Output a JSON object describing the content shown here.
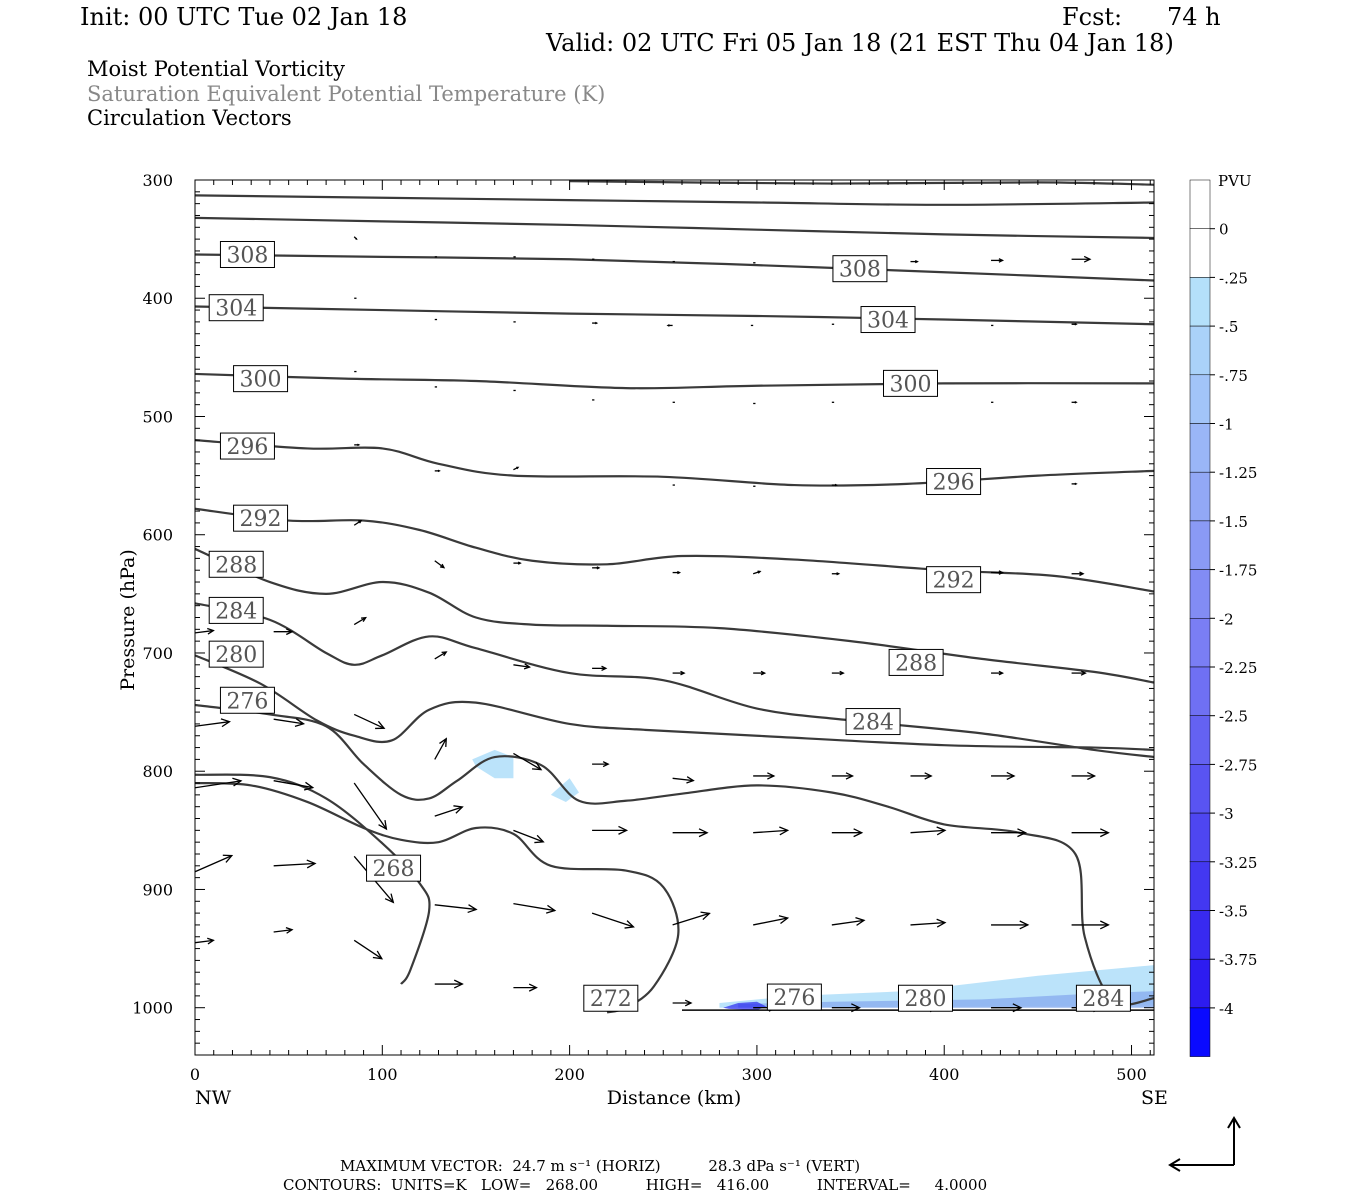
{
  "header": {
    "init": "Init: 00 UTC Tue 02 Jan 18",
    "fcst_label": "Fcst:",
    "fcst_value": "74 h",
    "valid": "Valid: 02 UTC Fri 05 Jan 18 (21 EST Thu 04 Jan 18)",
    "field1": "Moist Potential Vorticity",
    "field2": "Saturation Equivalent Potential Temperature (K)",
    "field3": "Circulation Vectors"
  },
  "footer": {
    "line1": "MAXIMUM VECTOR:  24.7 m s⁻¹ (HORIZ)          28.3 dPa s⁻¹ (VERT)",
    "line2": "CONTOURS:  UNITS=K   LOW=   268.00          HIGH=   416.00          INTERVAL=     4.0000"
  },
  "colors": {
    "contour": "#3a3a3a",
    "vector": "#000000",
    "pv_light": "#b4e0fa",
    "pv_mid": "#8fb2f0",
    "pv_dark": "#2a2af0"
  },
  "chart_data": {
    "type": "cross-section",
    "ylabel": "Pressure (hPa)",
    "xlabel": "Distance (km)",
    "x_left_label": "NW",
    "x_right_label": "SE",
    "xlim": [
      0,
      512
    ],
    "ylim": [
      1040,
      300
    ],
    "x_ticks": [
      0,
      100,
      200,
      300,
      400,
      500
    ],
    "y_ticks": [
      300,
      400,
      500,
      600,
      700,
      800,
      900,
      1000
    ],
    "colorbar": {
      "unit": "PVU",
      "labels": [
        "0",
        "-.25",
        "-.5",
        "-.75",
        "-1",
        "-1.25",
        "-1.5",
        "-1.75",
        "-2",
        "-2.25",
        "-2.5",
        "-2.75",
        "-3",
        "-3.25",
        "-3.5",
        "-3.75",
        "-4"
      ]
    },
    "contour_labels": [
      {
        "value": "308",
        "x": 28,
        "p": 363
      },
      {
        "value": "308",
        "x": 355,
        "p": 375
      },
      {
        "value": "304",
        "x": 22,
        "p": 408
      },
      {
        "value": "304",
        "x": 370,
        "p": 418
      },
      {
        "value": "300",
        "x": 35,
        "p": 468
      },
      {
        "value": "300",
        "x": 382,
        "p": 472
      },
      {
        "value": "296",
        "x": 28,
        "p": 525
      },
      {
        "value": "296",
        "x": 405,
        "p": 555
      },
      {
        "value": "292",
        "x": 35,
        "p": 586
      },
      {
        "value": "292",
        "x": 405,
        "p": 638
      },
      {
        "value": "288",
        "x": 22,
        "p": 625
      },
      {
        "value": "288",
        "x": 385,
        "p": 708
      },
      {
        "value": "284",
        "x": 22,
        "p": 664
      },
      {
        "value": "284",
        "x": 362,
        "p": 758
      },
      {
        "value": "280",
        "x": 22,
        "p": 701
      },
      {
        "value": "276",
        "x": 28,
        "p": 740
      },
      {
        "value": "268",
        "x": 106,
        "p": 882
      },
      {
        "value": "272",
        "x": 222,
        "p": 992
      },
      {
        "value": "276",
        "x": 320,
        "p": 991
      },
      {
        "value": "280",
        "x": 390,
        "p": 992
      },
      {
        "value": "284",
        "x": 485,
        "p": 992
      }
    ],
    "isentropes": [
      {
        "theta": 316,
        "x": [
          200,
          340,
          450,
          512
        ],
        "p": [
          301,
          303,
          302,
          304
        ]
      },
      {
        "theta": 312,
        "x": [
          0,
          100,
          200,
          300,
          400,
          512
        ],
        "p": [
          313,
          315,
          317,
          319,
          321,
          319
        ]
      },
      {
        "theta": 312,
        "x": [
          0,
          100,
          200,
          300,
          400,
          512
        ],
        "p": [
          332,
          335,
          338,
          342,
          346,
          349
        ]
      },
      {
        "theta": 308,
        "x": [
          0,
          100,
          200,
          300,
          400,
          512
        ],
        "p": [
          363,
          365,
          367,
          372,
          378,
          385
        ]
      },
      {
        "theta": 304,
        "x": [
          0,
          100,
          200,
          300,
          400,
          512
        ],
        "p": [
          407,
          410,
          413,
          415,
          418,
          422
        ]
      },
      {
        "theta": 300,
        "x": [
          0,
          80,
          150,
          230,
          300,
          400,
          512
        ],
        "p": [
          464,
          468,
          470,
          476,
          474,
          472,
          472
        ]
      },
      {
        "theta": 296,
        "x": [
          0,
          60,
          100,
          130,
          170,
          250,
          320,
          380,
          450,
          512
        ],
        "p": [
          520,
          527,
          527,
          540,
          550,
          551,
          558,
          557,
          550,
          546
        ]
      },
      {
        "theta": 292,
        "x": [
          0,
          50,
          90,
          120,
          150,
          180,
          220,
          260,
          320,
          400,
          460,
          512
        ],
        "p": [
          578,
          588,
          588,
          596,
          611,
          622,
          625,
          618,
          621,
          630,
          635,
          648
        ]
      },
      {
        "theta": 288,
        "x": [
          0,
          40,
          70,
          100,
          125,
          150,
          180,
          220,
          280,
          350,
          420,
          480,
          512
        ],
        "p": [
          612,
          640,
          650,
          640,
          649,
          670,
          676,
          677,
          679,
          690,
          705,
          716,
          725
        ]
      },
      {
        "theta": 284,
        "x": [
          0,
          40,
          70,
          85,
          100,
          125,
          150,
          200,
          250,
          300,
          350,
          420,
          480,
          512
        ],
        "p": [
          658,
          672,
          700,
          710,
          702,
          686,
          696,
          717,
          723,
          747,
          757,
          768,
          782,
          788
        ]
      },
      {
        "theta": 280,
        "x": [
          0,
          35,
          65,
          85,
          105,
          125,
          150,
          200,
          240,
          300,
          400,
          480,
          512
        ],
        "p": [
          702,
          726,
          757,
          770,
          774,
          748,
          742,
          760,
          765,
          770,
          778,
          780,
          782
        ]
      },
      {
        "theta": 276,
        "x": [
          0,
          40,
          70,
          90,
          110,
          125,
          140,
          160,
          185,
          205,
          230,
          260,
          300,
          340,
          370,
          400,
          440,
          470,
          475,
          490,
          512
        ],
        "p": [
          744,
          752,
          762,
          794,
          820,
          823,
          808,
          788,
          795,
          825,
          825,
          819,
          812,
          818,
          830,
          845,
          852,
          870,
          940,
          994,
          992
        ]
      },
      {
        "theta": 272,
        "x": [
          0,
          30,
          60,
          90,
          110,
          130,
          150,
          170,
          190,
          230,
          250,
          258,
          245,
          230,
          220
        ],
        "p": [
          810,
          812,
          826,
          848,
          858,
          860,
          848,
          853,
          880,
          884,
          898,
          938,
          982,
          1000,
          1004
        ]
      },
      {
        "theta": 268,
        "x": [
          0,
          40,
          70,
          100,
          120,
          125,
          115,
          110
        ],
        "p": [
          803,
          805,
          823,
          861,
          895,
          918,
          968,
          980
        ]
      }
    ],
    "vectors": [
      {
        "x": 85,
        "p": 348,
        "u": 1,
        "w": -1
      },
      {
        "x": 128,
        "p": 365,
        "u": 1,
        "w": 0
      },
      {
        "x": 170,
        "p": 365,
        "u": 1,
        "w": 0
      },
      {
        "x": 212,
        "p": 367,
        "u": 1,
        "w": 0
      },
      {
        "x": 255,
        "p": 369,
        "u": 1,
        "w": 0
      },
      {
        "x": 298,
        "p": 370,
        "u": 1,
        "w": 0
      },
      {
        "x": 382,
        "p": 369,
        "u": 3,
        "w": 0
      },
      {
        "x": 425,
        "p": 368,
        "u": 5,
        "w": 0
      },
      {
        "x": 468,
        "p": 367,
        "u": 8,
        "w": 0
      },
      {
        "x": 85,
        "p": 400,
        "u": 1,
        "w": 0
      },
      {
        "x": 128,
        "p": 418,
        "u": 1,
        "w": 0
      },
      {
        "x": 170,
        "p": 420,
        "u": 1,
        "w": 0
      },
      {
        "x": 212,
        "p": 421,
        "u": 2,
        "w": 0
      },
      {
        "x": 255,
        "p": 423,
        "u": -2,
        "w": 0
      },
      {
        "x": 298,
        "p": 423,
        "u": -1,
        "w": 0
      },
      {
        "x": 340,
        "p": 422,
        "u": 1,
        "w": 0
      },
      {
        "x": 425,
        "p": 423,
        "u": 1,
        "w": 0
      },
      {
        "x": 468,
        "p": 422,
        "u": 2,
        "w": 0
      },
      {
        "x": 85,
        "p": 462,
        "u": 1,
        "w": 0
      },
      {
        "x": 128,
        "p": 475,
        "u": 1,
        "w": 0
      },
      {
        "x": 170,
        "p": 478,
        "u": 1,
        "w": 0
      },
      {
        "x": 212,
        "p": 486,
        "u": 1,
        "w": 0
      },
      {
        "x": 255,
        "p": 488,
        "u": 1,
        "w": 0
      },
      {
        "x": 298,
        "p": 489,
        "u": 1,
        "w": 0
      },
      {
        "x": 340,
        "p": 488,
        "u": 1,
        "w": 0
      },
      {
        "x": 425,
        "p": 488,
        "u": 1,
        "w": 0
      },
      {
        "x": 468,
        "p": 488,
        "u": 2,
        "w": 0
      },
      {
        "x": 85,
        "p": 524,
        "u": 2,
        "w": 0
      },
      {
        "x": 128,
        "p": 546,
        "u": 2,
        "w": 0
      },
      {
        "x": 170,
        "p": 545,
        "u": 2,
        "w": 1
      },
      {
        "x": 255,
        "p": 558,
        "u": 1,
        "w": 0
      },
      {
        "x": 298,
        "p": 559,
        "u": 1,
        "w": 0
      },
      {
        "x": 340,
        "p": 558,
        "u": 2,
        "w": 0
      },
      {
        "x": 468,
        "p": 557,
        "u": 2,
        "w": 0
      },
      {
        "x": 85,
        "p": 592,
        "u": 3,
        "w": 2
      },
      {
        "x": 128,
        "p": 622,
        "u": 4,
        "w": -3
      },
      {
        "x": 170,
        "p": 624,
        "u": 3,
        "w": 0
      },
      {
        "x": 212,
        "p": 628,
        "u": 3,
        "w": 0
      },
      {
        "x": 255,
        "p": 632,
        "u": 3,
        "w": 0
      },
      {
        "x": 298,
        "p": 633,
        "u": 3,
        "w": 1
      },
      {
        "x": 340,
        "p": 633,
        "u": 3,
        "w": 0
      },
      {
        "x": 425,
        "p": 632,
        "u": 5,
        "w": 0
      },
      {
        "x": 468,
        "p": 633,
        "u": 5,
        "w": 0
      },
      {
        "x": 0,
        "p": 683,
        "u": 8,
        "w": 1
      },
      {
        "x": 42,
        "p": 682,
        "u": 8,
        "w": 0
      },
      {
        "x": 85,
        "p": 676,
        "u": 5,
        "w": 3
      },
      {
        "x": 128,
        "p": 705,
        "u": 5,
        "w": 3
      },
      {
        "x": 170,
        "p": 710,
        "u": 7,
        "w": -1
      },
      {
        "x": 212,
        "p": 713,
        "u": 6,
        "w": 0
      },
      {
        "x": 255,
        "p": 717,
        "u": 5,
        "w": 0
      },
      {
        "x": 298,
        "p": 717,
        "u": 5,
        "w": 0
      },
      {
        "x": 340,
        "p": 717,
        "u": 5,
        "w": 0
      },
      {
        "x": 382,
        "p": 717,
        "u": 5,
        "w": 0
      },
      {
        "x": 425,
        "p": 717,
        "u": 5,
        "w": 0
      },
      {
        "x": 468,
        "p": 717,
        "u": 6,
        "w": 0
      },
      {
        "x": 0,
        "p": 762,
        "u": 15,
        "w": 2
      },
      {
        "x": 42,
        "p": 756,
        "u": 13,
        "w": -2
      },
      {
        "x": 85,
        "p": 752,
        "u": 13,
        "w": -6
      },
      {
        "x": 128,
        "p": 790,
        "u": 5,
        "w": 9
      },
      {
        "x": 170,
        "p": 785,
        "u": 12,
        "w": -7
      },
      {
        "x": 212,
        "p": 794,
        "u": 7,
        "w": 0
      },
      {
        "x": 255,
        "p": 806,
        "u": 9,
        "w": -1
      },
      {
        "x": 298,
        "p": 804,
        "u": 9,
        "w": 0
      },
      {
        "x": 340,
        "p": 804,
        "u": 9,
        "w": 0
      },
      {
        "x": 382,
        "p": 804,
        "u": 9,
        "w": 0
      },
      {
        "x": 425,
        "p": 804,
        "u": 10,
        "w": 0
      },
      {
        "x": 468,
        "p": 804,
        "u": 10,
        "w": 0
      },
      {
        "x": 0,
        "p": 814,
        "u": 20,
        "w": 3
      },
      {
        "x": 42,
        "p": 808,
        "u": 17,
        "w": -3
      },
      {
        "x": 85,
        "p": 810,
        "u": 14,
        "w": -20
      },
      {
        "x": 128,
        "p": 838,
        "u": 12,
        "w": 4
      },
      {
        "x": 170,
        "p": 850,
        "u": 13,
        "w": -5
      },
      {
        "x": 212,
        "p": 850,
        "u": 15,
        "w": 0
      },
      {
        "x": 255,
        "p": 852,
        "u": 15,
        "w": 0
      },
      {
        "x": 298,
        "p": 852,
        "u": 15,
        "w": 1
      },
      {
        "x": 340,
        "p": 852,
        "u": 13,
        "w": 0
      },
      {
        "x": 382,
        "p": 852,
        "u": 15,
        "w": 1
      },
      {
        "x": 425,
        "p": 852,
        "u": 15,
        "w": 0
      },
      {
        "x": 468,
        "p": 852,
        "u": 16,
        "w": 0
      },
      {
        "x": 0,
        "p": 885,
        "u": 16,
        "w": 7
      },
      {
        "x": 42,
        "p": 880,
        "u": 18,
        "w": 1
      },
      {
        "x": 85,
        "p": 872,
        "u": 17,
        "w": -20
      },
      {
        "x": 128,
        "p": 913,
        "u": 18,
        "w": -2
      },
      {
        "x": 170,
        "p": 912,
        "u": 18,
        "w": -3
      },
      {
        "x": 212,
        "p": 920,
        "u": 18,
        "w": -6
      },
      {
        "x": 255,
        "p": 930,
        "u": 16,
        "w": 5
      },
      {
        "x": 298,
        "p": 930,
        "u": 15,
        "w": 3
      },
      {
        "x": 340,
        "p": 930,
        "u": 14,
        "w": 2
      },
      {
        "x": 382,
        "p": 930,
        "u": 15,
        "w": 1
      },
      {
        "x": 425,
        "p": 930,
        "u": 16,
        "w": 0
      },
      {
        "x": 468,
        "p": 930,
        "u": 16,
        "w": 0
      },
      {
        "x": 0,
        "p": 945,
        "u": 8,
        "w": 1
      },
      {
        "x": 42,
        "p": 936,
        "u": 8,
        "w": 1
      },
      {
        "x": 85,
        "p": 943,
        "u": 12,
        "w": -8
      },
      {
        "x": 128,
        "p": 980,
        "u": 12,
        "w": 0
      },
      {
        "x": 170,
        "p": 983,
        "u": 10,
        "w": 0
      },
      {
        "x": 212,
        "p": 993,
        "u": 8,
        "w": 0
      },
      {
        "x": 255,
        "p": 996,
        "u": 8,
        "w": 0
      },
      {
        "x": 298,
        "p": 1000,
        "u": 10,
        "w": 0
      },
      {
        "x": 340,
        "p": 1000,
        "u": 12,
        "w": 0
      },
      {
        "x": 382,
        "p": 1000,
        "u": 12,
        "w": 0
      },
      {
        "x": 425,
        "p": 1000,
        "u": 13,
        "w": 0
      },
      {
        "x": 468,
        "p": 1000,
        "u": 13,
        "w": 0
      }
    ],
    "pv_shading": [
      {
        "level": "-0.25",
        "x": [
          148,
          160,
          170,
          170,
          160,
          150
        ],
        "p": [
          790,
          782,
          788,
          806,
          806,
          796
        ]
      },
      {
        "level": "-0.25",
        "x": [
          192,
          200,
          205,
          198,
          190
        ],
        "p": [
          817,
          806,
          818,
          826,
          820
        ]
      },
      {
        "level": "-0.25",
        "x": [
          280,
          320,
          380,
          450,
          512,
          512,
          280
        ],
        "p": [
          996,
          990,
          986,
          973,
          964,
          998,
          1000
        ]
      },
      {
        "level": "-0.5",
        "x": [
          290,
          340,
          420,
          480,
          512,
          512,
          290
        ],
        "p": [
          997,
          995,
          993,
          988,
          986,
          1000,
          1000
        ]
      },
      {
        "level": "-2",
        "x": [
          282,
          290,
          300,
          305,
          300,
          285
        ],
        "p": [
          1000,
          996,
          995,
          999,
          1002,
          1001
        ]
      }
    ]
  },
  "legend_arrow": {
    "name": "reference-vector"
  }
}
